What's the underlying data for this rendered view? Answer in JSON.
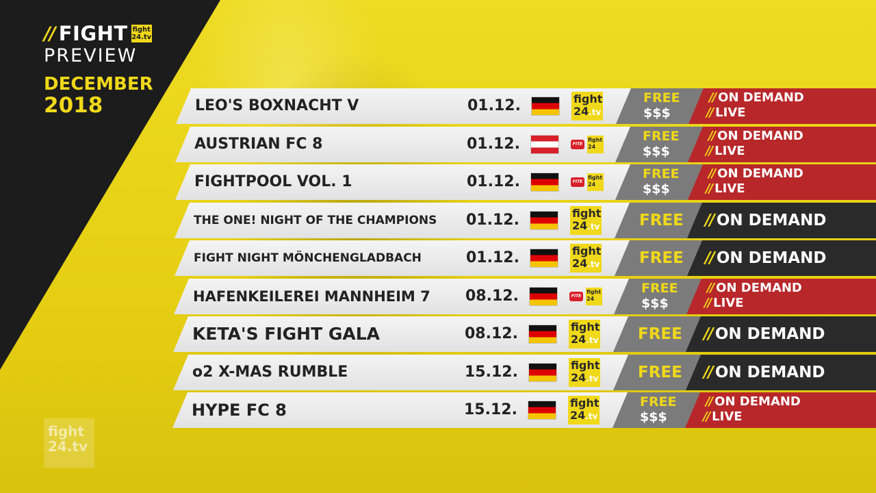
{
  "brand": {
    "slashes": "//",
    "title": "FIGHT",
    "logo_top": "fight",
    "logo_bottom": "24.tv",
    "subtitle": "PREVIEW",
    "month": "DECEMBER",
    "year": "2018"
  },
  "colors": {
    "accent_yellow": "#f0d81a",
    "dark": "#1c1c1c",
    "red": "#b8272a",
    "gray": "#7b7b7b"
  },
  "events": [
    {
      "name": "LEO'S BOXNACHT V",
      "date": "01.12.",
      "flag": "germany-flag-icon",
      "broadcaster": "fight24-logo-icon",
      "price_type": "paid",
      "free": "FREE",
      "price": "$$$",
      "availability": [
        "ON DEMAND",
        "LIVE"
      ]
    },
    {
      "name": "AUSTRIAN FC 8",
      "date": "01.12.",
      "flag": "austria-flag-icon",
      "broadcaster": "fite-fight24-logo-icon",
      "price_type": "paid",
      "free": "FREE",
      "price": "$$$",
      "availability": [
        "ON DEMAND",
        "LIVE"
      ]
    },
    {
      "name": "FIGHTPOOL VOL. 1",
      "date": "01.12.",
      "flag": "germany-flag-icon",
      "broadcaster": "fite-fight24-logo-icon",
      "price_type": "paid",
      "free": "FREE",
      "price": "$$$",
      "availability": [
        "ON DEMAND",
        "LIVE"
      ]
    },
    {
      "name": "THE ONE! NIGHT OF THE CHAMPIONS",
      "date": "01.12.",
      "flag": "germany-flag-icon",
      "broadcaster": "fight24-logo-icon",
      "price_type": "free",
      "free": "FREE",
      "price": "",
      "availability": [
        "ON DEMAND"
      ]
    },
    {
      "name": "FIGHT NIGHT MÖNCHENGLADBACH",
      "date": "01.12.",
      "flag": "germany-flag-icon",
      "broadcaster": "fight24-logo-icon",
      "price_type": "free",
      "free": "FREE",
      "price": "",
      "availability": [
        "ON DEMAND"
      ]
    },
    {
      "name": "HAFENKEILEREI MANNHEIM 7",
      "date": "08.12.",
      "flag": "germany-flag-icon",
      "broadcaster": "fite-fight24-logo-icon",
      "price_type": "paid",
      "free": "FREE",
      "price": "$$$",
      "availability": [
        "ON DEMAND",
        "LIVE"
      ]
    },
    {
      "name": "KETA'S FIGHT GALA",
      "date": "08.12.",
      "flag": "germany-flag-icon",
      "broadcaster": "fight24-logo-icon",
      "price_type": "free",
      "free": "FREE",
      "price": "",
      "availability": [
        "ON DEMAND"
      ]
    },
    {
      "name": "o2 X-MAS RUMBLE",
      "date": "15.12.",
      "flag": "germany-flag-icon",
      "broadcaster": "fight24-logo-icon",
      "price_type": "free",
      "free": "FREE",
      "price": "",
      "availability": [
        "ON DEMAND"
      ]
    },
    {
      "name": "HYPE FC 8",
      "date": "15.12.",
      "flag": "germany-flag-icon",
      "broadcaster": "fight24-logo-icon",
      "price_type": "paid",
      "free": "FREE",
      "price": "$$$",
      "availability": [
        "ON DEMAND",
        "LIVE"
      ]
    }
  ],
  "logo_text": {
    "f24_top": "fight",
    "f24_bottom": "24",
    "f24_tv": ".tv",
    "fite": "FITE",
    "mini_top": "fight",
    "mini_bottom": "24"
  },
  "slash_text": "//",
  "watermark": {
    "top": "fight",
    "bottom": "24.tv"
  }
}
